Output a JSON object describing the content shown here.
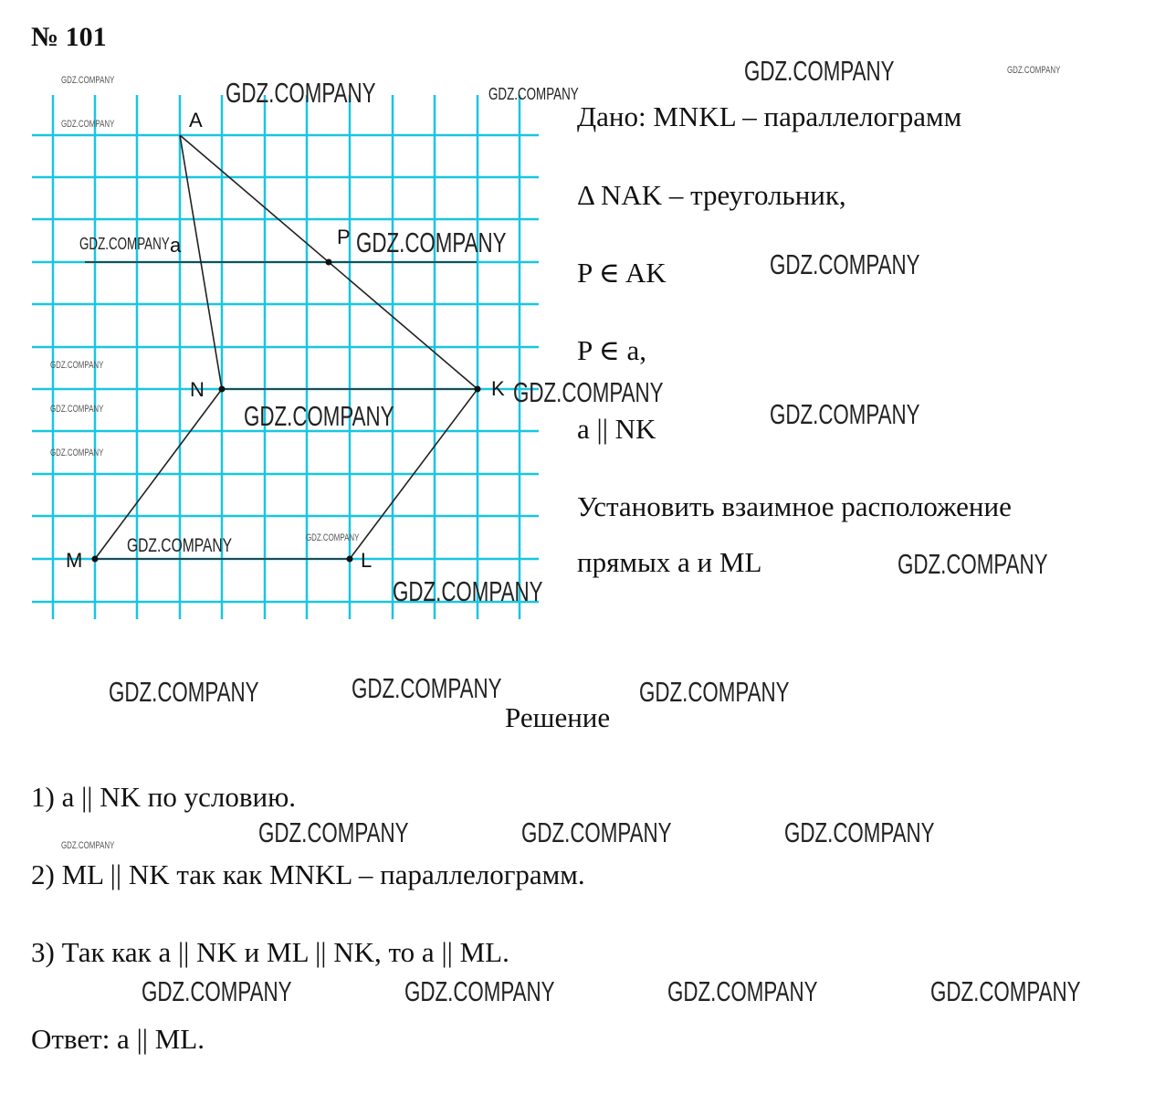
{
  "title": "№ 101",
  "diagram": {
    "points": {
      "A": "A",
      "P": "P",
      "N": "N",
      "K": "K",
      "M": "M",
      "L": "L",
      "line_a": "a"
    },
    "grid_color": "#19c6e0"
  },
  "given": [
    "Дано: MNKL – параллелограмм",
    "Δ NAK – треугольник,",
    "P ∈ AK",
    "P ∈ a,",
    "a || NK",
    "Установить взаимное расположение",
    "прямых a и ML"
  ],
  "solution_heading": "Решение",
  "steps": [
    "1) a || NK по условию.",
    "2) ML || NK так как MNKL – параллелограмм.",
    "3) Так как a || NK и ML || NK, то a || ML."
  ],
  "answer": "Ответ: a || ML.",
  "watermark": "GDZ.COMPANY"
}
